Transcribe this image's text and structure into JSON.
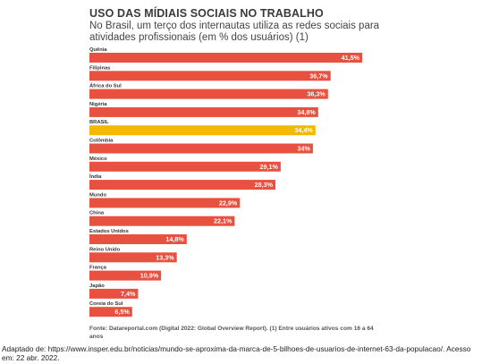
{
  "chart_data": {
    "type": "bar",
    "orientation": "horizontal",
    "title": "USO DAS MÍDIAIS SOCIAIS NO TRABALHO",
    "subtitle": "No Brasil, um terço dos internautas utiliza as redes sociais para atividades profissionais (em % dos usuários) (1)",
    "categories": [
      "Quênia",
      "Filipinas",
      "África do Sul",
      "Nigéria",
      "BRASIL",
      "Colômbia",
      "México",
      "Índia",
      "Mundo",
      "China",
      "Estados Unidos",
      "Reino Unido",
      "França",
      "Japão",
      "Coreia do Sul"
    ],
    "values": [
      41.5,
      36.7,
      36.3,
      34.8,
      34.4,
      34,
      29.1,
      28.3,
      22.9,
      22.1,
      14.8,
      13.3,
      10.9,
      7.4,
      6.5
    ],
    "value_labels": [
      "41,5%",
      "36,7%",
      "36,3%",
      "34,8%",
      "34,4%",
      "34%",
      "29,1%",
      "28,3%",
      "22,9%",
      "22,1%",
      "14,8%",
      "13,3%",
      "10,9%",
      "7,4%",
      "6,5%"
    ],
    "highlight": "BRASIL",
    "xlim": [
      0,
      41.5
    ],
    "grid": false,
    "legend": "none",
    "colors": {
      "bar": "#e8503f",
      "highlight": "#f5b800",
      "label": "#ffffff",
      "category": "#333333"
    },
    "source": "Fonte: Datareportal.com (Digital 2022: Global Overview Report). (1) Entre usuários ativos com 16 a 64 anos"
  },
  "credit": "Adaptado de: https://www.insper.edu.br/noticias/mundo-se-aproxima-da-marca-de-5-bilhoes-de-usuarios-de-internet-63-da-populacao/. Acesso em: 22 abr. 2022."
}
